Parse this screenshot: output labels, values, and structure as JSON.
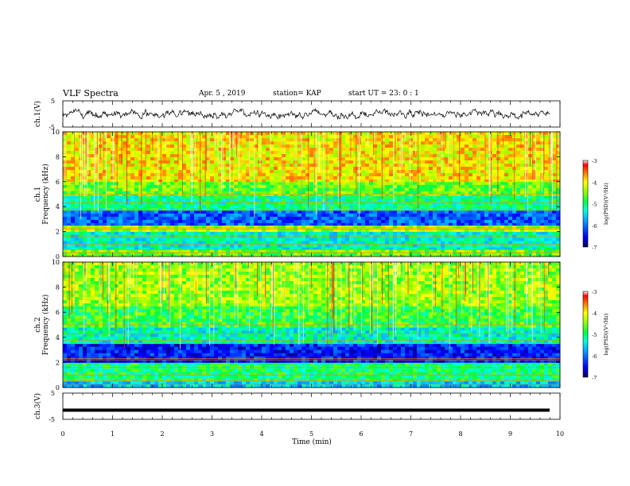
{
  "header": {
    "title": "VLF Spectra",
    "date": "Apr. 5 , 2019",
    "station": "station= KAP",
    "start": "start UT = 23: 0 : 1"
  },
  "colors": {
    "trace": "#000000",
    "colormap": [
      "#000060",
      "#0000ff",
      "#00a0ff",
      "#00ffe0",
      "#00ff40",
      "#a0ff00",
      "#ffff00",
      "#ff8000",
      "#ff0000",
      "#ffffff"
    ]
  },
  "chart_data": [
    {
      "type": "line",
      "panel": "waveform-ch1",
      "ylabel": "ch.1(V)",
      "ylim": [
        -5,
        5
      ],
      "yticks": [
        "5",
        "-5"
      ],
      "xlim": [
        0,
        10
      ],
      "series": [
        {
          "values_description_only": "",
          "y_range_observed": [
            -1.8,
            1.8
          ]
        }
      ]
    },
    {
      "type": "heatmap",
      "panel": "spectrogram-ch1",
      "ylabel": "ch.1\nFrequency (kHz)",
      "ylabel_lines": [
        "ch.1",
        "Frequency (kHz)"
      ],
      "ylim": [
        0,
        10
      ],
      "yticks": [
        "0",
        "2",
        "4",
        "6",
        "8",
        "10"
      ],
      "xlim": [
        0,
        10
      ],
      "colorbar": {
        "label": "log(PSD)(V²/Hz)",
        "range": [
          -7,
          -3
        ],
        "ticks": [
          "-3",
          "-4",
          "-5",
          "-6",
          "-7"
        ]
      },
      "bands": [
        {
          "from": 0,
          "to": 0.6,
          "level": -4.6
        },
        {
          "from": 0.6,
          "to": 2.0,
          "level": -5.3
        },
        {
          "from": 2.0,
          "to": 2.5,
          "level": -4.3
        },
        {
          "from": 2.5,
          "to": 3.7,
          "level": -6.1
        },
        {
          "from": 3.7,
          "to": 4.9,
          "level": -5.1
        },
        {
          "from": 4.9,
          "to": 6.0,
          "level": -4.6
        },
        {
          "from": 6.0,
          "to": 10.0,
          "level": -4.0
        }
      ]
    },
    {
      "type": "heatmap",
      "panel": "spectrogram-ch2",
      "ylabel_lines": [
        "ch.2",
        "Frequency (kHz)"
      ],
      "ylim": [
        0,
        10
      ],
      "yticks": [
        "0",
        "2",
        "4",
        "6",
        "8",
        "10"
      ],
      "xlim": [
        0,
        10
      ],
      "colorbar": {
        "label": "log(PSD)(V²/Hz)",
        "range": [
          -7,
          -3
        ],
        "ticks": [
          "-3",
          "-4",
          "-5",
          "-6",
          "-7"
        ]
      },
      "bands": [
        {
          "from": 0,
          "to": 0.5,
          "level": -5.6
        },
        {
          "from": 0.5,
          "to": 2.0,
          "level": -5.0
        },
        {
          "from": 2.0,
          "to": 3.5,
          "level": -6.4
        },
        {
          "from": 3.5,
          "to": 4.8,
          "level": -5.3
        },
        {
          "from": 4.8,
          "to": 6.5,
          "level": -4.8
        },
        {
          "from": 6.5,
          "to": 10.0,
          "level": -4.4
        }
      ]
    },
    {
      "type": "line",
      "panel": "waveform-ch3",
      "ylabel": "ch.3(V)",
      "ylim": [
        -5,
        5
      ],
      "yticks": [
        "5",
        "-5"
      ],
      "xlim": [
        0,
        10
      ],
      "series": [
        {
          "constant": -1.5
        }
      ]
    }
  ],
  "xaxis": {
    "label": "Time (min)",
    "ticks": [
      "0",
      "1",
      "2",
      "3",
      "4",
      "5",
      "6",
      "7",
      "8",
      "9",
      "10"
    ]
  }
}
